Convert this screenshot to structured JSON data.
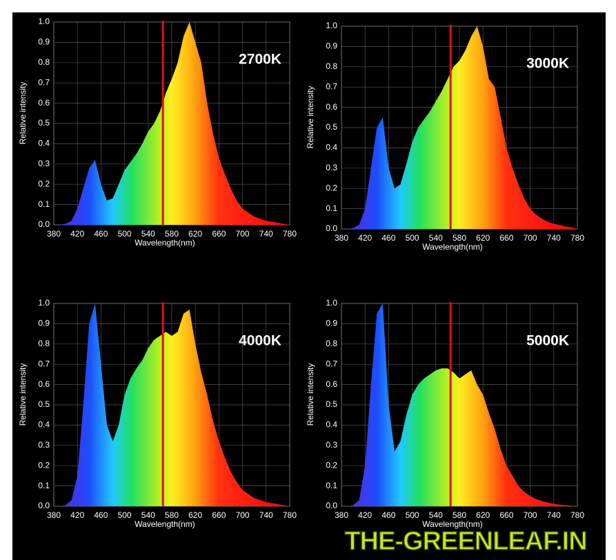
{
  "chart_data": [
    {
      "type": "area",
      "annotation": "2700K",
      "xlabel": "Wavelength(nm)",
      "ylabel": "Relative intensity",
      "grid": true,
      "reference_line": 565,
      "reference_color": "#e01010",
      "x": [
        380,
        390,
        400,
        410,
        420,
        430,
        440,
        450,
        460,
        470,
        480,
        490,
        500,
        510,
        520,
        530,
        540,
        550,
        560,
        570,
        580,
        590,
        600,
        610,
        620,
        630,
        640,
        650,
        660,
        670,
        680,
        690,
        700,
        710,
        720,
        730,
        740,
        750,
        760,
        770,
        780
      ],
      "values": [
        0,
        0,
        0.005,
        0.02,
        0.08,
        0.18,
        0.28,
        0.32,
        0.2,
        0.12,
        0.13,
        0.2,
        0.27,
        0.31,
        0.35,
        0.4,
        0.46,
        0.5,
        0.56,
        0.65,
        0.72,
        0.8,
        0.93,
        1.0,
        0.9,
        0.8,
        0.6,
        0.45,
        0.33,
        0.25,
        0.18,
        0.12,
        0.08,
        0.06,
        0.04,
        0.03,
        0.02,
        0.015,
        0.01,
        0.005,
        0
      ],
      "xlim": [
        380,
        780
      ],
      "xticks": [
        380,
        420,
        460,
        500,
        540,
        580,
        620,
        660,
        700,
        740,
        780
      ],
      "ylim": [
        0,
        1
      ],
      "yticks": [
        {
          "value": 0,
          "label": "0.0"
        },
        0.1,
        0.2,
        0.3,
        0.4,
        0.5,
        0.6,
        0.7,
        0.8,
        0.9,
        {
          "value": 1,
          "label": "1.0"
        }
      ]
    },
    {
      "type": "area",
      "annotation": "3000K",
      "xlabel": "Wavelength(nm)",
      "ylabel": "Relative intensity",
      "grid": true,
      "reference_line": 565,
      "reference_color": "#e01010",
      "x": [
        380,
        390,
        400,
        410,
        420,
        430,
        440,
        450,
        460,
        470,
        480,
        490,
        500,
        510,
        520,
        530,
        540,
        550,
        560,
        570,
        580,
        590,
        600,
        610,
        620,
        630,
        640,
        650,
        660,
        670,
        680,
        690,
        700,
        710,
        720,
        730,
        740,
        750,
        760,
        770,
        780
      ],
      "values": [
        0,
        0,
        0.005,
        0.02,
        0.1,
        0.3,
        0.5,
        0.55,
        0.3,
        0.2,
        0.22,
        0.32,
        0.43,
        0.5,
        0.54,
        0.58,
        0.63,
        0.68,
        0.74,
        0.8,
        0.83,
        0.88,
        0.95,
        1.0,
        0.9,
        0.74,
        0.7,
        0.55,
        0.4,
        0.3,
        0.22,
        0.15,
        0.1,
        0.07,
        0.05,
        0.035,
        0.025,
        0.02,
        0.012,
        0.008,
        0
      ],
      "xlim": [
        380,
        780
      ],
      "xticks": [
        380,
        420,
        460,
        500,
        540,
        580,
        620,
        660,
        700,
        740,
        780
      ],
      "ylim": [
        0,
        1
      ],
      "yticks": [
        {
          "value": 0,
          "label": "0.0"
        },
        0.1,
        0.2,
        0.3,
        0.4,
        0.5,
        0.6,
        0.7,
        0.8,
        0.9,
        {
          "value": 1,
          "label": "1.0"
        }
      ]
    },
    {
      "type": "area",
      "annotation": "4000K",
      "xlabel": "Wavelength(nm)",
      "ylabel": "Relative intensity",
      "grid": true,
      "reference_line": 565,
      "reference_color": "#e01010",
      "x": [
        380,
        390,
        400,
        410,
        420,
        430,
        440,
        450,
        460,
        470,
        480,
        490,
        500,
        510,
        520,
        530,
        540,
        550,
        560,
        570,
        580,
        590,
        600,
        610,
        620,
        630,
        640,
        650,
        660,
        670,
        680,
        690,
        700,
        710,
        720,
        730,
        740,
        750,
        760,
        770,
        780
      ],
      "values": [
        0,
        0,
        0.005,
        0.03,
        0.15,
        0.5,
        0.9,
        1.0,
        0.7,
        0.4,
        0.32,
        0.4,
        0.55,
        0.63,
        0.68,
        0.72,
        0.78,
        0.82,
        0.84,
        0.86,
        0.84,
        0.86,
        0.95,
        0.97,
        0.8,
        0.66,
        0.55,
        0.42,
        0.32,
        0.24,
        0.17,
        0.12,
        0.08,
        0.06,
        0.04,
        0.03,
        0.02,
        0.015,
        0.01,
        0.005,
        0
      ],
      "xlim": [
        380,
        780
      ],
      "xticks": [
        380,
        420,
        460,
        500,
        540,
        580,
        620,
        660,
        700,
        740,
        780
      ],
      "ylim": [
        0,
        1
      ],
      "yticks": [
        {
          "value": 0,
          "label": "0.0"
        },
        0.1,
        0.2,
        0.3,
        0.4,
        0.5,
        0.6,
        0.7,
        0.8,
        0.9,
        {
          "value": 1,
          "label": "1.0"
        }
      ]
    },
    {
      "type": "area",
      "annotation": "5000K",
      "xlabel": "Wavelength(nm)",
      "ylabel": "Relative intensity",
      "grid": true,
      "reference_line": 565,
      "reference_color": "#e01010",
      "x": [
        380,
        390,
        400,
        410,
        420,
        430,
        440,
        450,
        460,
        470,
        480,
        490,
        500,
        510,
        520,
        530,
        540,
        550,
        560,
        570,
        580,
        590,
        600,
        610,
        620,
        630,
        640,
        650,
        660,
        670,
        680,
        690,
        700,
        710,
        720,
        730,
        740,
        750,
        760,
        770,
        780
      ],
      "values": [
        0,
        0,
        0.005,
        0.03,
        0.2,
        0.6,
        0.95,
        1.0,
        0.5,
        0.27,
        0.32,
        0.45,
        0.55,
        0.6,
        0.63,
        0.65,
        0.67,
        0.68,
        0.68,
        0.66,
        0.63,
        0.65,
        0.67,
        0.6,
        0.55,
        0.46,
        0.38,
        0.28,
        0.2,
        0.15,
        0.1,
        0.07,
        0.05,
        0.035,
        0.025,
        0.018,
        0.012,
        0.008,
        0.005,
        0.003,
        0
      ],
      "xlim": [
        380,
        780
      ],
      "xticks": [
        380,
        420,
        460,
        500,
        540,
        580,
        620,
        660,
        700,
        740,
        780
      ],
      "ylim": [
        0,
        1
      ],
      "yticks": [
        {
          "value": 0,
          "label": "0.0"
        },
        0.1,
        0.2,
        0.3,
        0.4,
        0.5,
        0.6,
        0.7,
        0.8,
        0.9,
        {
          "value": 1,
          "label": "1.0"
        }
      ]
    }
  ],
  "watermark": "THE-GREENLEAF.IN"
}
